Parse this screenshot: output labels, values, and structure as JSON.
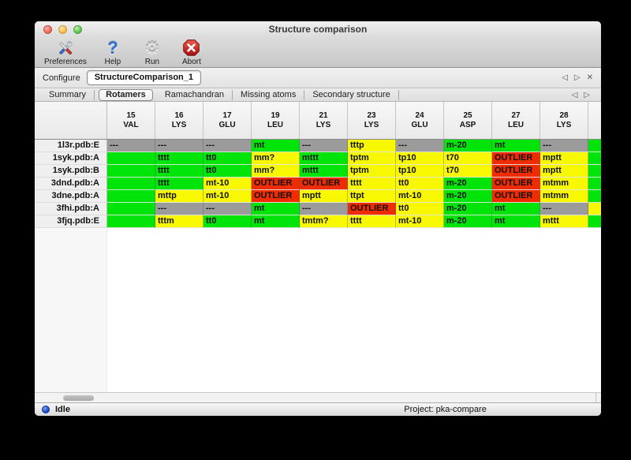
{
  "window": {
    "title": "Structure comparison"
  },
  "toolbar": {
    "buttons": [
      {
        "label": "Preferences"
      },
      {
        "label": "Help"
      },
      {
        "label": "Run"
      },
      {
        "label": "Abort"
      }
    ]
  },
  "configure": {
    "label": "Configure",
    "value": "StructureComparison_1",
    "prev": "◁",
    "next": "▷",
    "close": "✕"
  },
  "tabs": {
    "items": [
      {
        "label": "Summary",
        "selected": false
      },
      {
        "label": "Rotamers",
        "selected": true
      },
      {
        "label": "Ramachandran",
        "selected": false
      },
      {
        "label": "Missing atoms",
        "selected": false
      },
      {
        "label": "Secondary structure",
        "selected": false
      }
    ],
    "prev": "◁",
    "next": "▷"
  },
  "table": {
    "columns": [
      {
        "num": "15",
        "res": "VAL"
      },
      {
        "num": "16",
        "res": "LYS"
      },
      {
        "num": "17",
        "res": "GLU"
      },
      {
        "num": "19",
        "res": "LEU"
      },
      {
        "num": "21",
        "res": "LYS"
      },
      {
        "num": "23",
        "res": "LYS"
      },
      {
        "num": "24",
        "res": "GLU"
      },
      {
        "num": "25",
        "res": "ASP"
      },
      {
        "num": "27",
        "res": "LEU"
      },
      {
        "num": "28",
        "res": "LYS"
      }
    ],
    "rows": [
      {
        "label": "1l3r.pdb:E",
        "cells": [
          [
            "gray",
            "---"
          ],
          [
            "gray",
            "---"
          ],
          [
            "gray",
            "---"
          ],
          [
            "green",
            "mt"
          ],
          [
            "gray",
            "---"
          ],
          [
            "yellow",
            "tttp"
          ],
          [
            "gray",
            "---"
          ],
          [
            "green",
            "m-20"
          ],
          [
            "green",
            "mt"
          ],
          [
            "gray",
            "---"
          ]
        ],
        "overflow": "green"
      },
      {
        "label": "1syk.pdb:A",
        "cells": [
          [
            "green",
            ""
          ],
          [
            "green",
            "tttt"
          ],
          [
            "green",
            "tt0"
          ],
          [
            "yellow",
            "mm?"
          ],
          [
            "green",
            "mttt"
          ],
          [
            "yellow",
            "tptm"
          ],
          [
            "yellow",
            "tp10"
          ],
          [
            "yellow",
            "t70"
          ],
          [
            "red",
            "OUTLIER"
          ],
          [
            "yellow",
            "mptt"
          ]
        ],
        "overflow": "green"
      },
      {
        "label": "1syk.pdb:B",
        "cells": [
          [
            "green",
            ""
          ],
          [
            "green",
            "tttt"
          ],
          [
            "green",
            "tt0"
          ],
          [
            "yellow",
            "mm?"
          ],
          [
            "green",
            "mttt"
          ],
          [
            "yellow",
            "tptm"
          ],
          [
            "yellow",
            "tp10"
          ],
          [
            "yellow",
            "t70"
          ],
          [
            "red",
            "OUTLIER"
          ],
          [
            "yellow",
            "mptt"
          ]
        ],
        "overflow": "green"
      },
      {
        "label": "3dnd.pdb:A",
        "cells": [
          [
            "green",
            ""
          ],
          [
            "green",
            "tttt"
          ],
          [
            "yellow",
            "mt-10"
          ],
          [
            "red",
            "OUTLIER"
          ],
          [
            "red",
            "OUTLIER"
          ],
          [
            "yellow",
            "tttt"
          ],
          [
            "yellow",
            "tt0"
          ],
          [
            "green",
            "m-20"
          ],
          [
            "red",
            "OUTLIER"
          ],
          [
            "yellow",
            "mtmm"
          ]
        ],
        "overflow": "green"
      },
      {
        "label": "3dne.pdb:A",
        "cells": [
          [
            "green",
            ""
          ],
          [
            "yellow",
            "mttp"
          ],
          [
            "yellow",
            "mt-10"
          ],
          [
            "red",
            "OUTLIER"
          ],
          [
            "yellow",
            "mptt"
          ],
          [
            "yellow",
            "ttpt"
          ],
          [
            "yellow",
            "mt-10"
          ],
          [
            "green",
            "m-20"
          ],
          [
            "red",
            "OUTLIER"
          ],
          [
            "yellow",
            "mtmm"
          ]
        ],
        "overflow": "green"
      },
      {
        "label": "3fhi.pdb:A",
        "cells": [
          [
            "green",
            ""
          ],
          [
            "gray",
            "---"
          ],
          [
            "gray",
            "---"
          ],
          [
            "green",
            "mt"
          ],
          [
            "gray",
            "---"
          ],
          [
            "red",
            "OUTLIER"
          ],
          [
            "yellow",
            "tt0"
          ],
          [
            "green",
            "m-20"
          ],
          [
            "green",
            "mt"
          ],
          [
            "gray",
            "---"
          ]
        ],
        "overflow": "yellow"
      },
      {
        "label": "3fjq.pdb:E",
        "cells": [
          [
            "green",
            ""
          ],
          [
            "yellow",
            "tttm"
          ],
          [
            "green",
            "tt0"
          ],
          [
            "green",
            "mt"
          ],
          [
            "yellow",
            "tmtm?"
          ],
          [
            "yellow",
            "tttt"
          ],
          [
            "yellow",
            "mt-10"
          ],
          [
            "green",
            "m-20"
          ],
          [
            "green",
            "mt"
          ],
          [
            "yellow",
            "mttt"
          ]
        ],
        "overflow": "green"
      }
    ]
  },
  "statusbar": {
    "status": "Idle",
    "project": "Project: pka-compare"
  },
  "colors": {
    "green": "#00e40a",
    "yellow": "#f8f800",
    "red": "#ee2b01",
    "gray": "#9b9b9b",
    "header": "#ededed"
  }
}
